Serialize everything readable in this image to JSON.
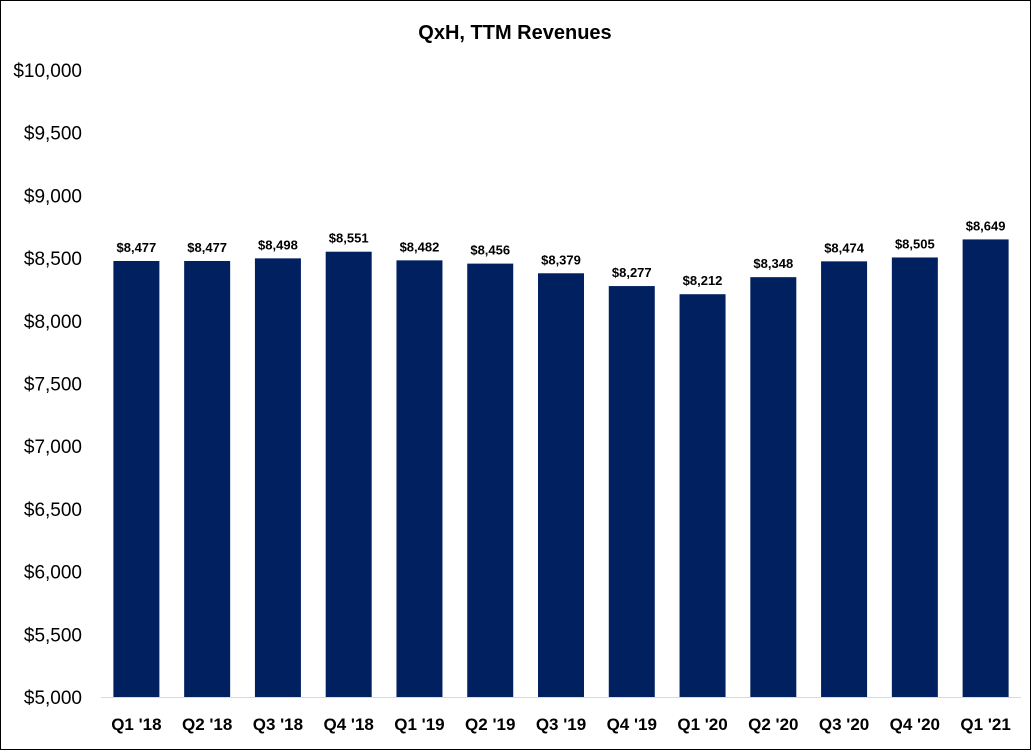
{
  "chart_data": {
    "type": "bar",
    "title": "QxH, TTM Revenues",
    "categories": [
      "Q1 '18",
      "Q2 '18",
      "Q3 '18",
      "Q4 '18",
      "Q1 '19",
      "Q2 '19",
      "Q3 '19",
      "Q4 '19",
      "Q1 '20",
      "Q2 '20",
      "Q3 '20",
      "Q4 '20",
      "Q1 '21"
    ],
    "values": [
      8477,
      8477,
      8498,
      8551,
      8482,
      8456,
      8379,
      8277,
      8212,
      8348,
      8474,
      8505,
      8649
    ],
    "data_labels": [
      "$8,477",
      "$8,477",
      "$8,498",
      "$8,551",
      "$8,482",
      "$8,456",
      "$8,379",
      "$8,277",
      "$8,212",
      "$8,348",
      "$8,474",
      "$8,505",
      "$8,649"
    ],
    "yticks": [
      5000,
      5500,
      6000,
      6500,
      7000,
      7500,
      8000,
      8500,
      9000,
      9500,
      10000
    ],
    "ytick_labels": [
      "$5,000",
      "$5,500",
      "$6,000",
      "$6,500",
      "$7,000",
      "$7,500",
      "$8,000",
      "$8,500",
      "$9,000",
      "$9,500",
      "$10,000"
    ],
    "ylim": [
      5000,
      10000
    ],
    "xlabel": "",
    "ylabel": "",
    "grid": false,
    "bar_color": "#002060"
  }
}
